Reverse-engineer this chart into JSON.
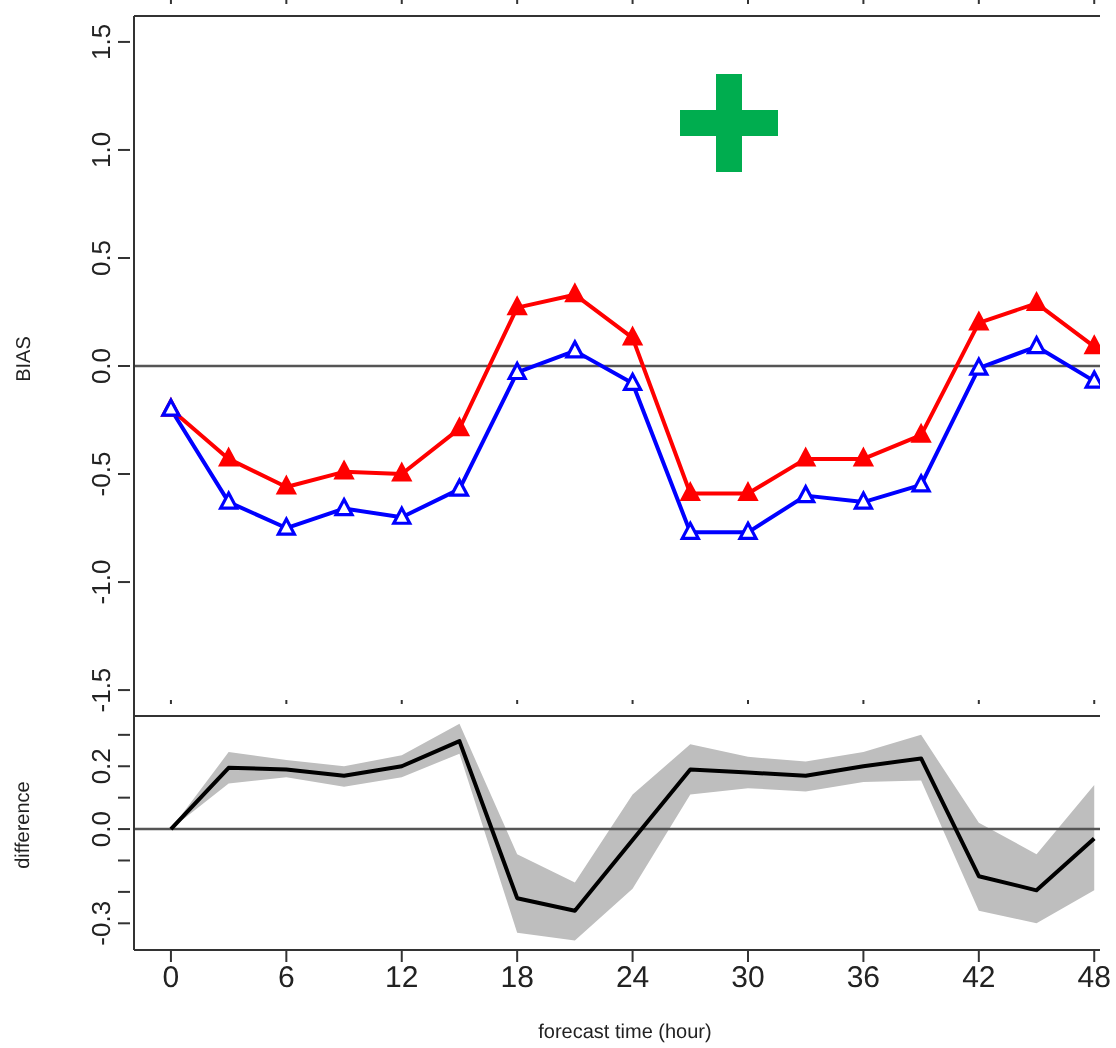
{
  "chart_data": [
    {
      "type": "line",
      "ylabel": "BIAS",
      "x": [
        0,
        3,
        6,
        9,
        12,
        15,
        18,
        21,
        24,
        27,
        30,
        33,
        36,
        39,
        42,
        45,
        48
      ],
      "xlim": [
        -1.92,
        48.3
      ],
      "xticks": [
        {
          "value": 0,
          "label": null
        },
        {
          "value": 6,
          "label": null
        },
        {
          "value": 12,
          "label": null
        },
        {
          "value": 18,
          "label": null
        },
        {
          "value": 24,
          "label": null
        },
        {
          "value": 30,
          "label": null
        },
        {
          "value": 36,
          "label": null
        },
        {
          "value": 42,
          "label": null
        },
        {
          "value": 48,
          "label": null
        }
      ],
      "ylim": [
        -1.62,
        1.62
      ],
      "yticks": [
        {
          "value": -1.5,
          "label": "-1.5"
        },
        {
          "value": -1,
          "label": "-1.0"
        },
        {
          "value": -0.5,
          "label": "-0.5"
        },
        {
          "value": 0,
          "label": "0.0"
        },
        {
          "value": 0.5,
          "label": "0.5"
        },
        {
          "value": 1,
          "label": "1.0"
        },
        {
          "value": 1.5,
          "label": "1.5"
        }
      ],
      "tick_labels": "y",
      "marker": "triangle",
      "line_style": "solid",
      "ref_lines": [
        {
          "axis": "y",
          "value": 0,
          "color": "#555555"
        }
      ],
      "series": [
        {
          "color": "#ff0000",
          "values": [
            -0.2,
            -0.43,
            -0.56,
            -0.49,
            -0.5,
            -0.29,
            0.27,
            0.33,
            0.13,
            -0.59,
            -0.59,
            -0.43,
            -0.43,
            -0.32,
            0.2,
            0.29,
            0.09
          ]
        },
        {
          "color": "#0000ff",
          "values": [
            -0.2,
            -0.63,
            -0.75,
            -0.66,
            -0.7,
            -0.57,
            -0.03,
            0.07,
            -0.08,
            -0.77,
            -0.77,
            -0.6,
            -0.63,
            -0.55,
            -0.01,
            0.09,
            -0.07
          ]
        }
      ]
    },
    {
      "type": "line",
      "xlabel": "forecast time (hour)",
      "ylabel": "difference",
      "x": [
        0,
        3,
        6,
        9,
        12,
        15,
        18,
        21,
        24,
        27,
        30,
        33,
        36,
        39,
        42,
        45,
        48
      ],
      "xlim": [
        -1.92,
        48.3
      ],
      "xticks": [
        0,
        6,
        12,
        18,
        24,
        30,
        36,
        42,
        48
      ],
      "ylim": [
        -0.385,
        0.36
      ],
      "yticks": [
        {
          "value": -0.3,
          "label": "-0.3"
        },
        {
          "value": -0.2,
          "label": null
        },
        {
          "value": -0.1,
          "label": null
        },
        {
          "value": 0,
          "label": "0.0"
        },
        {
          "value": 0.1,
          "label": null
        },
        {
          "value": 0.2,
          "label": "0.2"
        },
        {
          "value": 0.3,
          "label": null
        }
      ],
      "marker": "none",
      "line_style": "solid",
      "ref_lines": [
        {
          "axis": "y",
          "value": 0,
          "color": "#555555"
        }
      ],
      "series": [
        {
          "color": "#000000",
          "values": [
            0,
            0.195,
            0.19,
            0.17,
            0.2,
            0.28,
            -0.22,
            -0.26,
            -0.035,
            0.19,
            0.18,
            0.17,
            0.2,
            0.225,
            -0.15,
            -0.195,
            -0.03
          ],
          "lower": [
            0,
            0.145,
            0.165,
            0.135,
            0.165,
            0.24,
            -0.33,
            -0.355,
            -0.19,
            0.11,
            0.13,
            0.12,
            0.15,
            0.155,
            -0.26,
            -0.3,
            -0.195
          ],
          "upper": [
            0,
            0.245,
            0.22,
            0.2,
            0.235,
            0.335,
            -0.08,
            -0.17,
            0.11,
            0.27,
            0.23,
            0.215,
            0.245,
            0.3,
            0.02,
            -0.08,
            0.14
          ]
        }
      ]
    }
  ]
}
